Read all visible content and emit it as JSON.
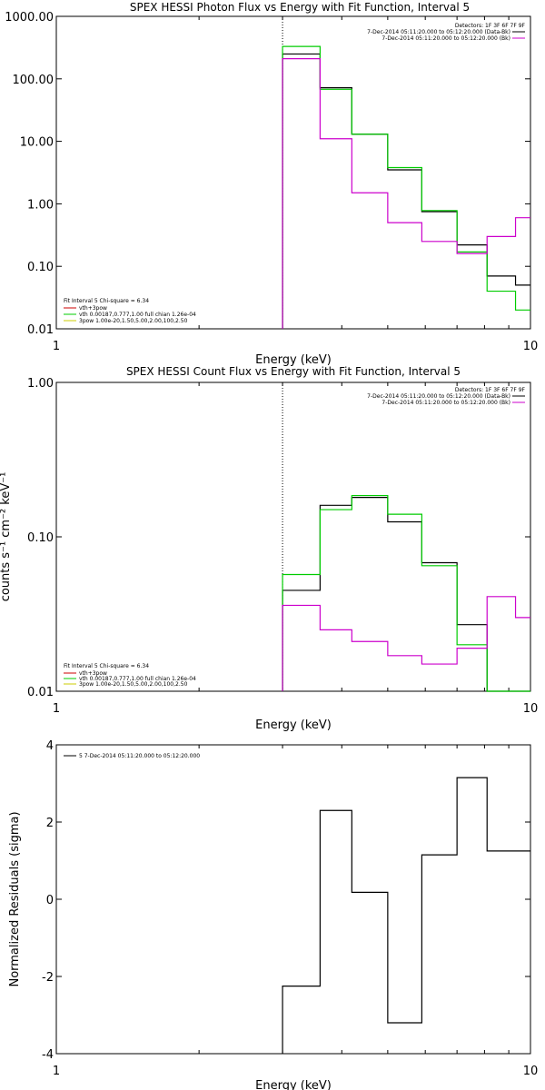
{
  "chart_data": [
    {
      "type": "line",
      "title": "SPEX HESSI Photon Flux vs Energy with Fit Function, Interval 5",
      "xlabel": "Energy (keV)",
      "ylabel": "",
      "xscale": "log",
      "yscale": "log",
      "xlim": [
        1,
        10
      ],
      "ylim": [
        0.01,
        1000
      ],
      "x_ticks": [
        "1",
        "10"
      ],
      "y_ticks": [
        "0.01",
        "0.10",
        "1.00",
        "10.00",
        "100.00",
        "1000.00"
      ],
      "bin_edges": [
        3,
        3.6,
        4.2,
        5.0,
        5.9,
        7.0,
        8.1,
        9.3,
        10.5
      ],
      "series": [
        {
          "name": "Data",
          "color": "#000000",
          "values": [
            250,
            72,
            13,
            3.5,
            0.75,
            0.22,
            0.07,
            0.05
          ]
        },
        {
          "name": "vth",
          "color": "#00cc00",
          "values": [
            330,
            68,
            13,
            3.8,
            0.78,
            0.17,
            0.04,
            0.02
          ]
        },
        {
          "name": "Bk",
          "color": "#cc00cc",
          "values": [
            210,
            11,
            1.5,
            0.5,
            0.25,
            0.16,
            0.3,
            0.6
          ]
        }
      ],
      "vline_x": 3,
      "legend_top_right": {
        "detectors": "Detectors: 1F 3F 6F 7F 9F",
        "lines": [
          "7-Dec-2014 05:11:20.000 to 05:12:20.000 (Data-Bk)",
          "7-Dec-2014 05:11:20.000 to 05:12:20.000 (Bk)"
        ]
      },
      "legend_bottom_left": {
        "header": "Fit Interval 5   Chi-square = 6.34",
        "lines": [
          "vth+3pow",
          "vth 0.00187,0.777,1.00  full chian 1.26e-04",
          "3pow 1.00e-20,1.50,5.00,2.00,100,2.50"
        ]
      }
    },
    {
      "type": "line",
      "title": "SPEX HESSI Count Flux vs Energy with Fit Function, Interval 5",
      "xlabel": "Energy (keV)",
      "ylabel": "counts s⁻¹ cm⁻² keV⁻¹",
      "xscale": "log",
      "yscale": "log",
      "xlim": [
        1,
        10
      ],
      "ylim": [
        0.01,
        1
      ],
      "x_ticks": [
        "1",
        "10"
      ],
      "y_ticks": [
        "0.01",
        "0.10",
        "1.00"
      ],
      "bin_edges": [
        3,
        3.6,
        4.2,
        5.0,
        5.9,
        7.0,
        8.1,
        9.3,
        10.5
      ],
      "series": [
        {
          "name": "Data",
          "color": "#000000",
          "values": [
            0.045,
            0.16,
            0.18,
            0.125,
            0.068,
            0.027,
            0.01,
            0.01
          ]
        },
        {
          "name": "vth",
          "color": "#00cc00",
          "values": [
            0.057,
            0.15,
            0.185,
            0.14,
            0.065,
            0.02,
            0.01,
            0.01
          ]
        },
        {
          "name": "Bk",
          "color": "#cc00cc",
          "values": [
            0.036,
            0.025,
            0.021,
            0.017,
            0.015,
            0.019,
            0.041,
            0.03
          ]
        }
      ],
      "vline_x": 3,
      "legend_top_right": {
        "detectors": "Detectors: 1F 3F 6F 7F 9F",
        "lines": [
          "7-Dec-2014 05:11:20.000 to 05:12:20.000 (Data-Bk)",
          "7-Dec-2014 05:11:20.000 to 05:12:20.000 (Bk)"
        ]
      },
      "legend_bottom_left": {
        "header": "Fit Interval 5   Chi-square = 6.34",
        "lines": [
          "vth+3pow",
          "vth 0.00187,0.777,1.00  full chian 1.26e-04",
          "3pow 1.00e-20,1.50,5.00,2.00,100,2.50"
        ]
      }
    },
    {
      "type": "line",
      "title": "",
      "xlabel": "Energy (keV)",
      "ylabel": "Normalized Residuals (sigma)",
      "xscale": "log",
      "yscale": "linear",
      "xlim": [
        1,
        10
      ],
      "ylim": [
        -4,
        4
      ],
      "x_ticks": [
        "1",
        "10"
      ],
      "y_ticks": [
        "-4",
        "-2",
        "0",
        "2",
        "4"
      ],
      "bin_edges": [
        3,
        3.6,
        4.2,
        5.0,
        5.9,
        7.0,
        8.1,
        9.3,
        10.5
      ],
      "series": [
        {
          "name": "5",
          "color": "#000000",
          "values": [
            -2.25,
            2.3,
            0.18,
            -3.2,
            1.15,
            3.15,
            1.25,
            1.25
          ]
        }
      ],
      "legend": "5  7-Dec-2014 05:11:20.000 to 05:12:20.000"
    }
  ]
}
